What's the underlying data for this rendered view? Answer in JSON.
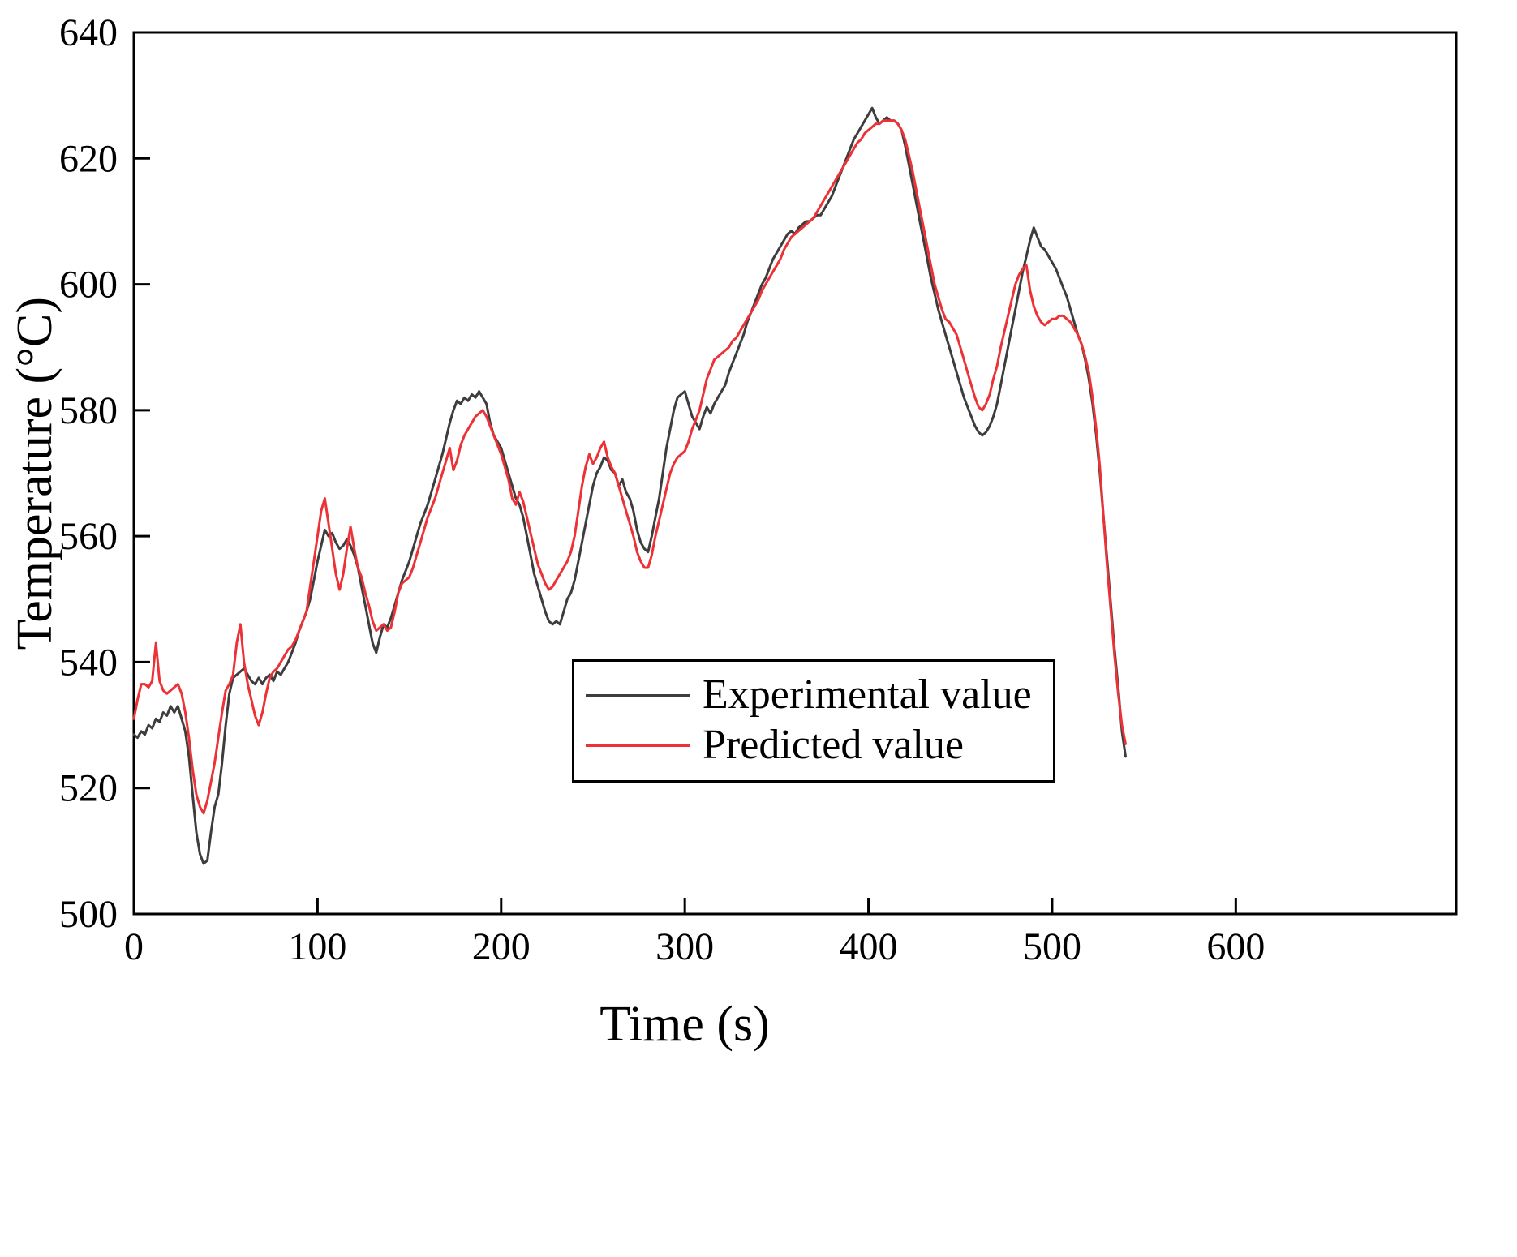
{
  "figure": {
    "background": "#ffffff",
    "frame_color": "#000000"
  },
  "chart_data": {
    "type": "line",
    "title": "",
    "xlabel": "Time (s)",
    "ylabel": "Temperature (°C)",
    "xlim": [
      0,
      720
    ],
    "ylim": [
      500,
      640
    ],
    "x_ticks": [
      0,
      100,
      200,
      300,
      400,
      500,
      600
    ],
    "y_ticks": [
      500,
      520,
      540,
      560,
      580,
      600,
      620,
      640
    ],
    "grid": false,
    "legend_position": "inside-lower-right",
    "x_start": 0,
    "x_step": 2,
    "series": [
      {
        "name": "Experimental value",
        "color": "#3d3d3d",
        "line_width": 3,
        "values": [
          528.5,
          528,
          529,
          528.5,
          530,
          529.5,
          531,
          530.5,
          532,
          531.5,
          533,
          532,
          533,
          531,
          529,
          525,
          519,
          513,
          509.5,
          508,
          508.5,
          513,
          517,
          519,
          524,
          530,
          535,
          537.5,
          538,
          538.5,
          539,
          538,
          537,
          536.5,
          537.5,
          536.5,
          537.5,
          538,
          537,
          538.5,
          538,
          539,
          540,
          541.5,
          543,
          545,
          546.5,
          548,
          550,
          553,
          556,
          558.5,
          561,
          560,
          560.5,
          559,
          558,
          558.5,
          559.5,
          558.5,
          557,
          555,
          552,
          549,
          546,
          543,
          541.5,
          544,
          546,
          545.5,
          547,
          549,
          551,
          553,
          554.5,
          556,
          558,
          560,
          562,
          563.5,
          565,
          567,
          569,
          571,
          573,
          575.5,
          578,
          580,
          581.5,
          581,
          582,
          581.5,
          582.5,
          582,
          583,
          582,
          581,
          578,
          576,
          575,
          574,
          572,
          570,
          568,
          566,
          565,
          563,
          560,
          557,
          554,
          552,
          550,
          548,
          546.5,
          546,
          546.5,
          546,
          548,
          550,
          551,
          553,
          556,
          559,
          562,
          565,
          568,
          570,
          571,
          572.5,
          572,
          570.5,
          570,
          568,
          569,
          567,
          566,
          564,
          561,
          559,
          558,
          557.5,
          560,
          563,
          566,
          570,
          574,
          577,
          580,
          582,
          582.5,
          583,
          581,
          579,
          578,
          577,
          579,
          580.5,
          579.5,
          581,
          582,
          583,
          584,
          586,
          587.5,
          589,
          590.5,
          592,
          594,
          595.5,
          597,
          598.5,
          600,
          601,
          602.5,
          604,
          605,
          606,
          607,
          608,
          608.5,
          608,
          609,
          609.5,
          610,
          610,
          610.5,
          611,
          611,
          612,
          613,
          614,
          615.5,
          617,
          618.5,
          620,
          621.5,
          623,
          624,
          625,
          626,
          627,
          628,
          626.5,
          625.5,
          626,
          626.5,
          626,
          626,
          625.5,
          624.5,
          622,
          619,
          616,
          613,
          610,
          607,
          604,
          601,
          598.5,
          596,
          594,
          592,
          590,
          588,
          586,
          584,
          582,
          580.5,
          579,
          577.5,
          576.5,
          576,
          576.5,
          577.5,
          579,
          581,
          584,
          587,
          590,
          593,
          596,
          599,
          602,
          604.5,
          607,
          609,
          607.5,
          606,
          605.5,
          604.5,
          603.5,
          602.5,
          601,
          599.5,
          598,
          596,
          594,
          592,
          590.5,
          588,
          585,
          581,
          576,
          570,
          563,
          556,
          549,
          542,
          536,
          529,
          525
        ]
      },
      {
        "name": "Predicted value",
        "color": "#ec3236",
        "line_width": 3,
        "values": [
          531,
          534,
          536.5,
          536.5,
          536,
          537,
          543,
          537,
          535.5,
          535,
          535.5,
          536,
          536.5,
          535,
          532,
          528,
          523,
          519,
          517,
          516,
          518,
          521,
          524,
          528,
          532,
          535.5,
          536.5,
          538,
          543,
          546,
          540,
          536.5,
          534,
          531.5,
          530,
          532,
          535,
          537.5,
          538.5,
          539,
          540,
          541,
          542,
          542.5,
          543.5,
          545,
          546.5,
          548,
          552,
          556,
          560,
          564,
          566,
          562,
          558,
          554,
          551.5,
          554,
          558,
          561.5,
          558,
          555,
          553.5,
          551,
          549,
          546.5,
          545,
          545.5,
          546,
          545,
          545.5,
          548,
          551,
          552.5,
          553,
          553.5,
          555,
          557,
          559,
          561,
          563,
          564.5,
          566,
          568,
          570,
          572,
          574,
          570.5,
          572,
          574.5,
          576,
          577,
          578,
          579,
          579.5,
          580,
          579,
          577.5,
          576,
          574.5,
          573,
          571,
          569,
          566,
          565,
          567,
          565.5,
          563,
          560.5,
          558,
          555.5,
          554,
          552.5,
          551.5,
          552,
          553,
          554,
          555,
          556,
          557.5,
          560,
          564,
          568,
          571,
          573,
          571.5,
          572.5,
          574,
          575,
          572.5,
          571,
          570,
          568,
          566,
          564,
          562,
          560,
          557.5,
          556,
          555,
          555,
          557,
          560,
          562.5,
          565,
          567.5,
          570,
          571.5,
          572.5,
          573,
          573.5,
          575,
          577,
          578.5,
          580,
          582.5,
          585,
          586.5,
          588,
          588.5,
          589,
          589.5,
          590,
          591,
          591.5,
          592.5,
          593.5,
          594.5,
          595.5,
          596.5,
          597.5,
          599,
          600,
          601,
          602,
          603,
          604,
          605.5,
          606.5,
          607.5,
          608,
          608.5,
          609,
          609.5,
          610,
          610.5,
          611.5,
          612.5,
          613.5,
          614.5,
          615.5,
          616.5,
          617.5,
          618.5,
          619.5,
          620.5,
          621.5,
          622.5,
          623,
          624,
          624.5,
          625,
          625.5,
          625.5,
          626,
          626,
          626,
          626,
          625.5,
          624.5,
          623,
          620.5,
          618,
          615,
          612,
          609,
          606,
          603,
          600,
          598,
          596,
          594.5,
          594,
          593,
          592,
          590,
          588,
          586,
          584,
          582,
          580.5,
          580,
          581,
          582.5,
          585,
          587,
          590,
          592.5,
          595,
          597.5,
          600,
          601.5,
          602.5,
          603,
          599,
          596.5,
          595,
          594,
          593.5,
          594,
          594.5,
          594.5,
          595,
          595,
          594.5,
          594,
          593,
          592,
          590.5,
          588.5,
          586,
          582,
          577,
          571,
          563,
          555,
          548,
          541,
          535,
          530,
          527
        ]
      }
    ]
  }
}
